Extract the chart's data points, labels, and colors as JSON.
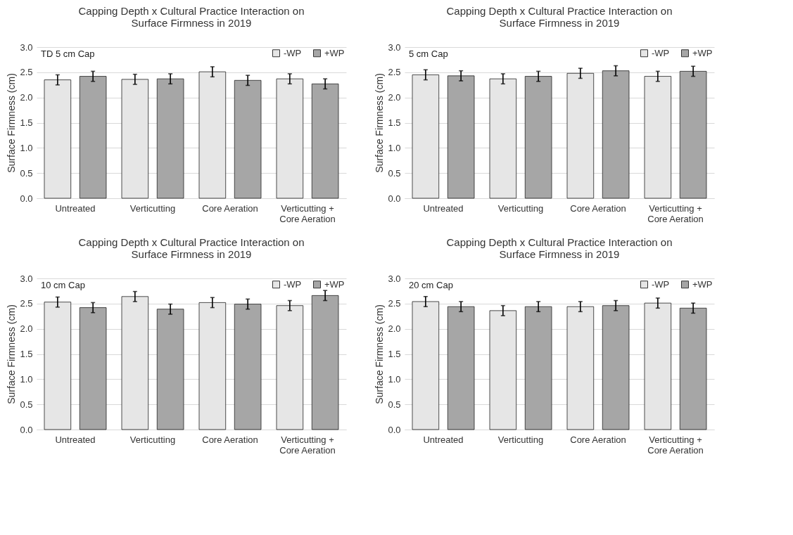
{
  "chart_data": [
    {
      "type": "bar",
      "title": "Capping Depth x Cultural Practice Interaction on Surface Firmness in 2019",
      "ylabel": "Surface Firmness (cm)",
      "annotations": [
        "TD 5 cm Cap"
      ],
      "categories": [
        "Untreated",
        "Verticutting",
        "Core Aeration",
        "Verticutting + Core Aeration"
      ],
      "series": [
        {
          "name": "-WP",
          "color": "#e6e6e6",
          "values": [
            2.35,
            2.36,
            2.51,
            2.37
          ],
          "errors": [
            0.1,
            0.1,
            0.1,
            0.1
          ]
        },
        {
          "name": "+WP",
          "color": "#a6a6a6",
          "values": [
            2.42,
            2.37,
            2.34,
            2.27
          ],
          "errors": [
            0.1,
            0.1,
            0.1,
            0.1
          ]
        }
      ],
      "ylim": [
        0,
        3
      ],
      "yticks": [
        {
          "value": 0,
          "label": "0.0"
        },
        {
          "value": 0.5,
          "label": "0.5"
        },
        {
          "value": 1,
          "label": "1.0"
        },
        {
          "value": 1.5,
          "label": "1.5"
        },
        {
          "value": 2,
          "label": "2.0"
        },
        {
          "value": 2.5,
          "label": "2.5"
        },
        {
          "value": 3,
          "label": "3.0"
        }
      ],
      "grid": "y",
      "legend": "top right"
    },
    {
      "type": "bar",
      "title": "Capping Depth x Cultural Practice Interaction on Surface Firmness in 2019",
      "ylabel": "Surface Firmness (cm)",
      "annotations": [
        "5 cm Cap"
      ],
      "categories": [
        "Untreated",
        "Verticutting",
        "Core Aeration",
        "Verticutting + Core Aeration"
      ],
      "series": [
        {
          "name": "-WP",
          "color": "#e6e6e6",
          "values": [
            2.45,
            2.37,
            2.48,
            2.42
          ],
          "errors": [
            0.1,
            0.1,
            0.1,
            0.1
          ]
        },
        {
          "name": "+WP",
          "color": "#a6a6a6",
          "values": [
            2.43,
            2.42,
            2.53,
            2.52
          ],
          "errors": [
            0.1,
            0.1,
            0.1,
            0.1
          ]
        }
      ],
      "ylim": [
        0,
        3
      ],
      "yticks": [
        {
          "value": 0,
          "label": "0.0"
        },
        {
          "value": 0.5,
          "label": "0.5"
        },
        {
          "value": 1,
          "label": "1.0"
        },
        {
          "value": 1.5,
          "label": "1.5"
        },
        {
          "value": 2,
          "label": "2.0"
        },
        {
          "value": 2.5,
          "label": "2.5"
        },
        {
          "value": 3,
          "label": "3.0"
        }
      ],
      "grid": "y",
      "legend": "top right"
    },
    {
      "type": "bar",
      "title": "Capping Depth x Cultural Practice Interaction on Surface Firmness in 2019",
      "ylabel": "Surface Firmness (cm)",
      "annotations": [
        "10 cm Cap"
      ],
      "categories": [
        "Untreated",
        "Verticutting",
        "Core Aeration",
        "Verticutting + Core Aeration"
      ],
      "series": [
        {
          "name": "-WP",
          "color": "#e6e6e6",
          "values": [
            2.53,
            2.64,
            2.52,
            2.46
          ],
          "errors": [
            0.1,
            0.1,
            0.1,
            0.1
          ]
        },
        {
          "name": "+WP",
          "color": "#a6a6a6",
          "values": [
            2.42,
            2.39,
            2.49,
            2.66
          ],
          "errors": [
            0.1,
            0.1,
            0.1,
            0.1
          ]
        }
      ],
      "ylim": [
        0,
        3
      ],
      "yticks": [
        {
          "value": 0,
          "label": "0.0"
        },
        {
          "value": 0.5,
          "label": "0.5"
        },
        {
          "value": 1,
          "label": "1.0"
        },
        {
          "value": 1.5,
          "label": "1.5"
        },
        {
          "value": 2,
          "label": "2.0"
        },
        {
          "value": 2.5,
          "label": "2.5"
        },
        {
          "value": 3,
          "label": "3.0"
        }
      ],
      "grid": "y",
      "legend": "top right"
    },
    {
      "type": "bar",
      "title": "Capping Depth x Cultural Practice Interaction on Surface Firmness in 2019",
      "ylabel": "Surface Firmness (cm)",
      "annotations": [
        "20 cm Cap"
      ],
      "categories": [
        "Untreated",
        "Verticutting",
        "Core Aeration",
        "Verticutting + Core Aeration"
      ],
      "series": [
        {
          "name": "-WP",
          "color": "#e6e6e6",
          "values": [
            2.54,
            2.36,
            2.44,
            2.51
          ],
          "errors": [
            0.1,
            0.1,
            0.1,
            0.1
          ]
        },
        {
          "name": "+WP",
          "color": "#a6a6a6",
          "values": [
            2.44,
            2.44,
            2.46,
            2.41
          ],
          "errors": [
            0.1,
            0.1,
            0.1,
            0.1
          ]
        }
      ],
      "ylim": [
        0,
        3
      ],
      "yticks": [
        {
          "value": 0,
          "label": "0.0"
        },
        {
          "value": 0.5,
          "label": "0.5"
        },
        {
          "value": 1,
          "label": "1.0"
        },
        {
          "value": 1.5,
          "label": "1.5"
        },
        {
          "value": 2,
          "label": "2.0"
        },
        {
          "value": 2.5,
          "label": "2.5"
        },
        {
          "value": 3,
          "label": "3.0"
        }
      ],
      "grid": "y",
      "legend": "top right"
    }
  ]
}
